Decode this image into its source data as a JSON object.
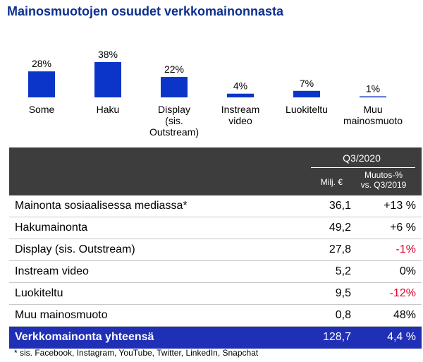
{
  "title": "Mainosmuotojen osuudet verkkomainonnasta",
  "chart_data": {
    "type": "bar",
    "title": "Mainosmuotojen osuudet verkkomainonnasta",
    "categories": [
      "Some",
      "Haku",
      "Display (sis. Outstream)",
      "Instream video",
      "Luokiteltu",
      "Muu mainosmuoto"
    ],
    "category_lines": [
      [
        "Some"
      ],
      [
        "Haku"
      ],
      [
        "Display",
        "(sis.",
        "Outstream)"
      ],
      [
        "Instream",
        "video"
      ],
      [
        "Luokiteltu"
      ],
      [
        "Muu",
        "mainosmuoto"
      ]
    ],
    "values": [
      28,
      38,
      22,
      4,
      7,
      1
    ],
    "value_labels": [
      "28%",
      "38%",
      "22%",
      "4%",
      "7%",
      "1%"
    ],
    "unit": "%",
    "color": "#0a35c8",
    "ylim": [
      0,
      38
    ]
  },
  "table": {
    "period": "Q3/2020",
    "col1_header": "Milj. €",
    "col2_header_lines": [
      "Muutos-%",
      "vs. Q3/2019"
    ],
    "rows": [
      {
        "label": "Mainonta sosiaalisessa mediassa*",
        "value": "36,1",
        "change": "+13 %",
        "negative": false
      },
      {
        "label": "Hakumainonta",
        "value": "49,2",
        "change": "+6 %",
        "negative": false
      },
      {
        "label": "Display (sis. Outstream)",
        "value": "27,8",
        "change": "-1%",
        "negative": true
      },
      {
        "label": "Instream video",
        "value": "5,2",
        "change": "0%",
        "negative": false
      },
      {
        "label": "Luokiteltu",
        "value": "9,5",
        "change": "-12%",
        "negative": true
      },
      {
        "label": "Muu mainosmuoto",
        "value": "0,8",
        "change": "48%",
        "negative": false
      }
    ],
    "total": {
      "label": "Verkkomainonta yhteensä",
      "value": "128,7",
      "change": "4,4 %"
    },
    "colors": {
      "header_bg": "#3d3d3d",
      "total_bg": "#1f2fb6",
      "negative": "#e0002a"
    }
  },
  "footnote": "* sis. Facebook, Instagram, YouTube, Twitter, LinkedIn, Snapchat"
}
